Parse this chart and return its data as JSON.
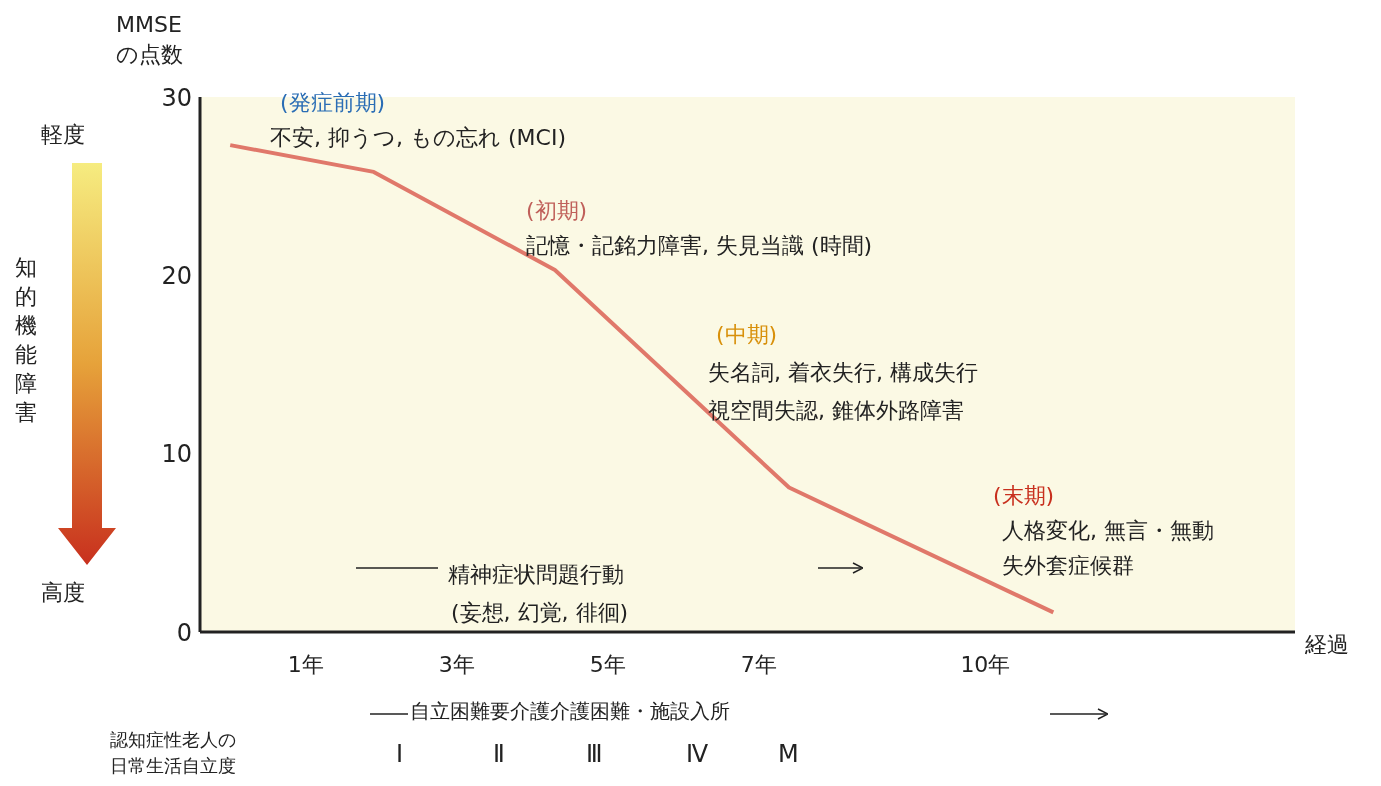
{
  "chart_data": {
    "type": "line",
    "ylabel": "MMSE\nの点数",
    "xlabel": "経過",
    "x": [
      0,
      1.9,
      4.3,
      7.4,
      10.9
    ],
    "series": [
      {
        "color": "#e0786a",
        "values": [
          27.3,
          25.8,
          20.3,
          8.1,
          1.1
        ]
      }
    ],
    "xlim": [
      -0.4,
      14.1
    ],
    "xticks": [
      {
        "value": 1,
        "label": "1年"
      },
      {
        "value": 3,
        "label": "3年"
      },
      {
        "value": 5,
        "label": "5年"
      },
      {
        "value": 7,
        "label": "7年"
      },
      {
        "value": 10,
        "label": "10年"
      }
    ],
    "ylim": [
      0,
      30
    ],
    "yticks": [
      0,
      10,
      20,
      30
    ],
    "grid": false,
    "legend": false,
    "marker": "none",
    "line_style": "solid",
    "annotations": [
      "(発症前期)",
      "不安, 抑うつ, もの忘れ (MCI)",
      "(初期)",
      "記憶・記銘力障害, 失見当識 (時間)",
      "(中期)",
      "失名詞, 着衣失行, 構成失行",
      "視空間失認, 錐体外路障害",
      "(末期)",
      "人格変化, 無言・無動",
      "失外套症候群",
      "精神症状問題行動",
      "(妄想, 幻覚, 徘徊)",
      "自立困難要介護介護困難・施設入所",
      "認知症性老人の",
      "日常生活自立度",
      "Ⅰ",
      "Ⅱ",
      "Ⅲ",
      "Ⅳ",
      "M",
      "軽度",
      "知的機能障害",
      "高度"
    ]
  }
}
